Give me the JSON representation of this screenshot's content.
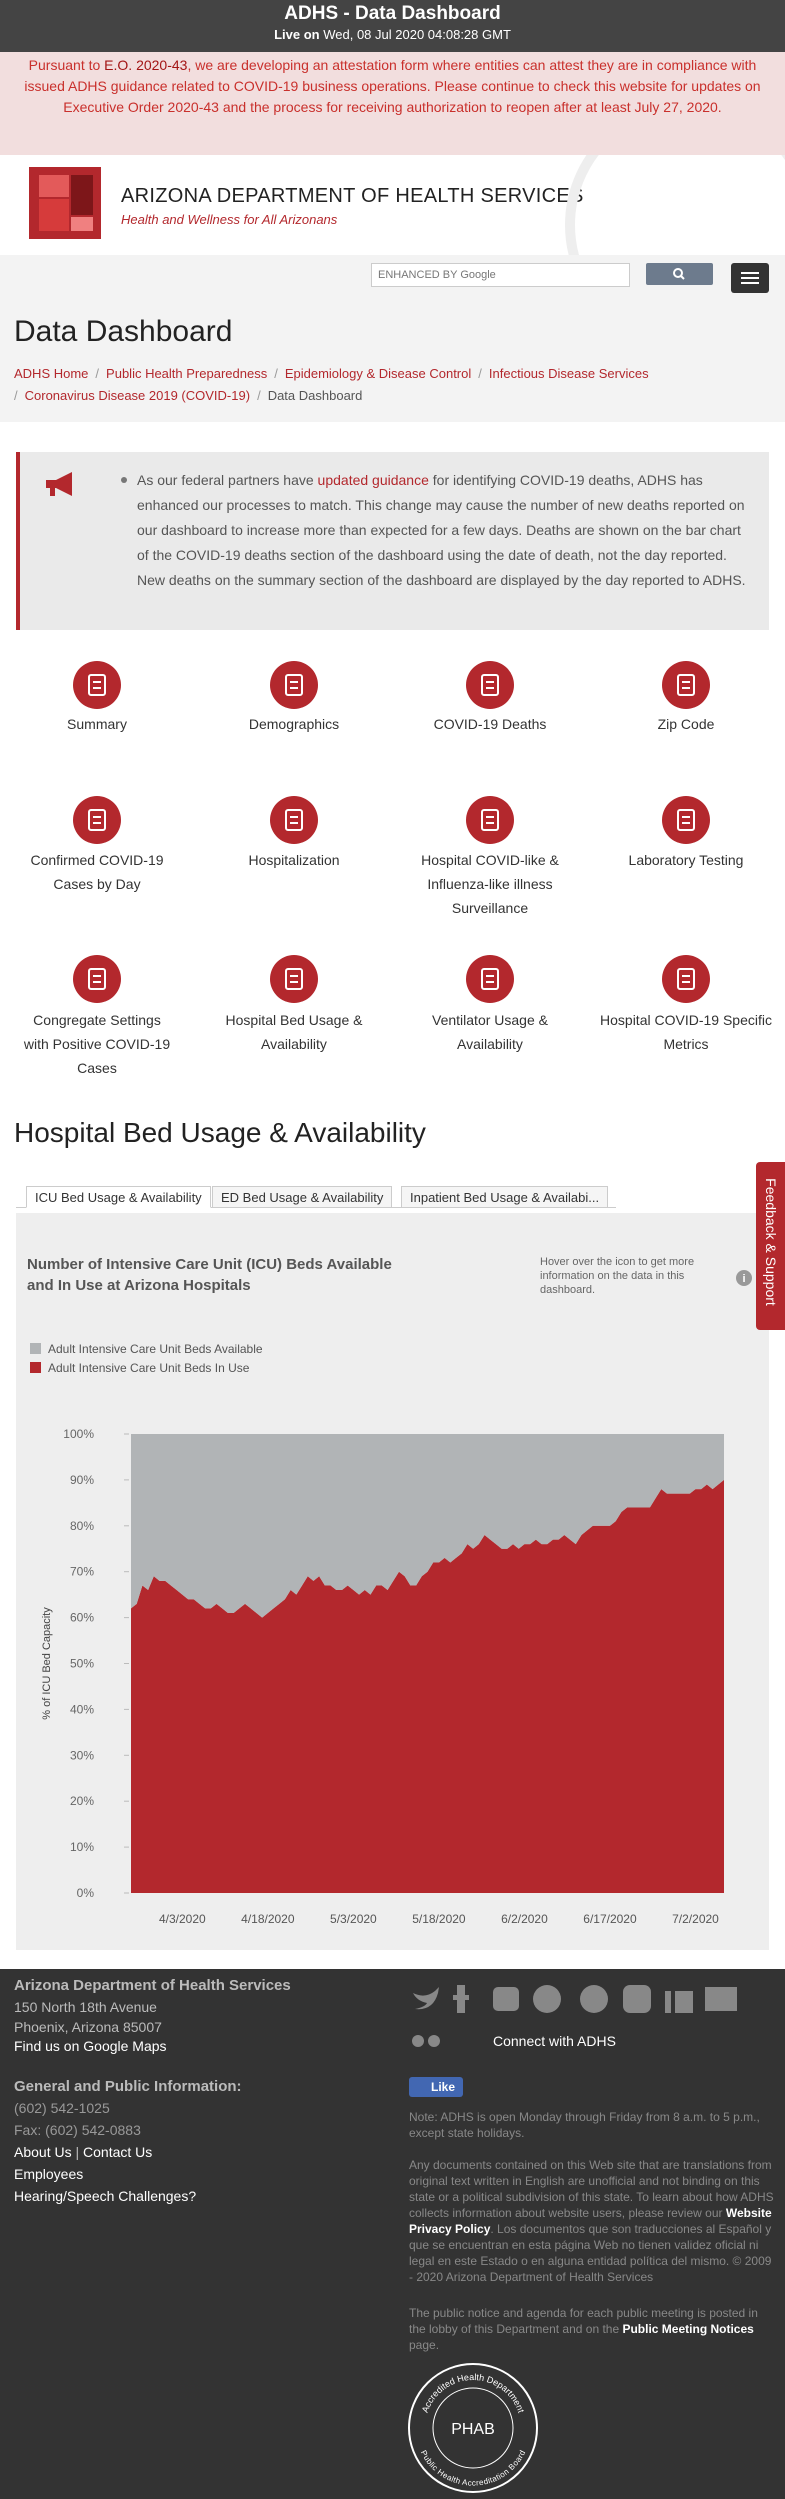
{
  "top_bar": {
    "title": "ADHS - Data Dashboard",
    "live_prefix": "Live on",
    "live_time": "Wed, 08 Jul 2020 04:08:28 GMT"
  },
  "alert": {
    "text_before": "Pursuant to ",
    "link": "E.O. 2020-43",
    "text_after": ", we are developing an attestation form where entities can attest they are in compliance with issued ADHS guidance related to COVID-19 business operations. Please continue to check this website for updates on Executive Order 2020-43 and the process for receiving authorization to reopen after at least July 27, 2020."
  },
  "header": {
    "org": "ARIZONA DEPARTMENT OF HEALTH SERVICES",
    "tagline": "Health and Wellness for All Arizonans",
    "search_placeholder": "ENHANCED BY Google"
  },
  "page_title": "Data Dashboard",
  "breadcrumbs": [
    "ADHS Home",
    "Public Health Preparedness",
    "Epidemiology & Disease Control",
    "Infectious Disease Services",
    "Coronavirus Disease 2019 (COVID-19)",
    "Data Dashboard"
  ],
  "notice": {
    "text_before": "As our federal partners have ",
    "link": "updated guidance",
    "text_after": " for identifying COVID-19 deaths, ADHS has enhanced our processes to match. This change may cause the number of new deaths reported on our dashboard to increase more than expected for a few days. Deaths are shown on the bar chart of the COVID-19 deaths section of the dashboard using the date of death, not the day reported. New deaths on the summary section of the dashboard are displayed by the day reported to ADHS."
  },
  "nav": [
    "Summary",
    "Demographics",
    "COVID-19 Deaths",
    "Zip Code",
    "Confirmed COVID-19 Cases by Day",
    "Hospitalization",
    "Hospital COVID-like & Influenza-like illness Surveillance",
    "Laboratory Testing",
    "Congregate Settings with Positive COVID-19 Cases",
    "Hospital Bed Usage & Availability",
    "Ventilator Usage & Availability",
    "Hospital COVID-19 Specific Metrics"
  ],
  "section_title": "Hospital Bed Usage & Availability",
  "tabs": [
    "ICU Bed Usage & Availability",
    "ED Bed Usage & Availability",
    "Inpatient Bed Usage & Availabi..."
  ],
  "feedback": "Feedback & Support",
  "chart_data": {
    "type": "area",
    "stacked": true,
    "title": "Number of Intensive Care Unit (ICU) Beds Available and In Use at Arizona Hospitals",
    "annotation": "Hover over the icon to get more information on the data in this dashboard.",
    "y_label": "% of ICU Bed Capacity",
    "x": [
      "3/25/2020",
      "3/26/2020",
      "3/27/2020",
      "3/28/2020",
      "3/29/2020",
      "3/30/2020",
      "3/31/2020",
      "4/1/2020",
      "4/2/2020",
      "4/3/2020",
      "4/4/2020",
      "4/5/2020",
      "4/6/2020",
      "4/7/2020",
      "4/8/2020",
      "4/9/2020",
      "4/10/2020",
      "4/11/2020",
      "4/12/2020",
      "4/13/2020",
      "4/14/2020",
      "4/15/2020",
      "4/16/2020",
      "4/17/2020",
      "4/18/2020",
      "4/19/2020",
      "4/20/2020",
      "4/21/2020",
      "4/22/2020",
      "4/23/2020",
      "4/24/2020",
      "4/25/2020",
      "4/26/2020",
      "4/27/2020",
      "4/28/2020",
      "4/29/2020",
      "4/30/2020",
      "5/1/2020",
      "5/2/2020",
      "5/3/2020",
      "5/4/2020",
      "5/5/2020",
      "5/6/2020",
      "5/7/2020",
      "5/8/2020",
      "5/9/2020",
      "5/10/2020",
      "5/11/2020",
      "5/12/2020",
      "5/13/2020",
      "5/14/2020",
      "5/15/2020",
      "5/16/2020",
      "5/17/2020",
      "5/18/2020",
      "5/19/2020",
      "5/20/2020",
      "5/21/2020",
      "5/22/2020",
      "5/23/2020",
      "5/24/2020",
      "5/25/2020",
      "5/26/2020",
      "5/27/2020",
      "5/28/2020",
      "5/29/2020",
      "5/30/2020",
      "5/31/2020",
      "6/1/2020",
      "6/2/2020",
      "6/3/2020",
      "6/4/2020",
      "6/5/2020",
      "6/6/2020",
      "6/7/2020",
      "6/8/2020",
      "6/9/2020",
      "6/10/2020",
      "6/11/2020",
      "6/12/2020",
      "6/13/2020",
      "6/14/2020",
      "6/15/2020",
      "6/16/2020",
      "6/17/2020",
      "6/18/2020",
      "6/19/2020",
      "6/20/2020",
      "6/21/2020",
      "6/22/2020",
      "6/23/2020",
      "6/24/2020",
      "6/25/2020",
      "6/26/2020",
      "6/27/2020",
      "6/28/2020",
      "6/29/2020",
      "6/30/2020",
      "7/1/2020",
      "7/2/2020",
      "7/3/2020",
      "7/4/2020",
      "7/5/2020",
      "7/6/2020",
      "7/7/2020"
    ],
    "series": [
      {
        "name": "Adult Intensive Care Unit Beds Available",
        "color": "#b1b4b6",
        "values": [
          38,
          37,
          33,
          34,
          31,
          32,
          32,
          33,
          34,
          35,
          36,
          36,
          37,
          38,
          38,
          37,
          38,
          39,
          39,
          38,
          37,
          38,
          39,
          40,
          39,
          38,
          37,
          36,
          34,
          35,
          33,
          31,
          32,
          31,
          33,
          33,
          34,
          34,
          33,
          34,
          35,
          34,
          35,
          33,
          33,
          34,
          32,
          30,
          31,
          33,
          33,
          31,
          30,
          28,
          28,
          27,
          28,
          27,
          26,
          24,
          25,
          24,
          22,
          23,
          24,
          25,
          25,
          24,
          25,
          24,
          24,
          23,
          24,
          24,
          23,
          23,
          22,
          23,
          24,
          22,
          21,
          20,
          20,
          20,
          20,
          19,
          17,
          16,
          16,
          16,
          16,
          16,
          14,
          12,
          13,
          13,
          13,
          13,
          13,
          12,
          12,
          11,
          12,
          11,
          10
        ]
      },
      {
        "name": "Adult Intensive Care Unit Beds In Use",
        "color": "#b3282d",
        "values": [
          62,
          63,
          67,
          66,
          69,
          68,
          68,
          67,
          66,
          65,
          64,
          64,
          63,
          62,
          62,
          63,
          62,
          61,
          61,
          62,
          63,
          62,
          61,
          60,
          61,
          62,
          63,
          64,
          66,
          65,
          67,
          69,
          68,
          69,
          67,
          67,
          66,
          66,
          67,
          66,
          65,
          66,
          65,
          67,
          67,
          66,
          68,
          70,
          69,
          67,
          67,
          69,
          70,
          72,
          72,
          73,
          72,
          73,
          74,
          76,
          75,
          76,
          78,
          77,
          76,
          75,
          75,
          76,
          75,
          76,
          76,
          77,
          76,
          76,
          77,
          77,
          78,
          77,
          76,
          78,
          79,
          80,
          80,
          80,
          80,
          81,
          83,
          84,
          84,
          84,
          84,
          84,
          86,
          88,
          87,
          87,
          87,
          87,
          87,
          88,
          88,
          89,
          88,
          89,
          90
        ]
      }
    ],
    "xticks": [
      "4/3/2020",
      "4/18/2020",
      "5/3/2020",
      "5/18/2020",
      "6/2/2020",
      "6/17/2020",
      "7/2/2020"
    ],
    "ylim": [
      0,
      100
    ],
    "yticks": [
      {
        "value": 0,
        "label": "0%"
      },
      {
        "value": 10,
        "label": "10%"
      },
      {
        "value": 20,
        "label": "20%"
      },
      {
        "value": 30,
        "label": "30%"
      },
      {
        "value": 40,
        "label": "40%"
      },
      {
        "value": 50,
        "label": "50%"
      },
      {
        "value": 60,
        "label": "60%"
      },
      {
        "value": 70,
        "label": "70%"
      },
      {
        "value": 80,
        "label": "80%"
      },
      {
        "value": 90,
        "label": "90%"
      },
      {
        "value": 100,
        "label": "100%"
      }
    ],
    "grid": false
  },
  "footer": {
    "org": "Arizona Department of Health Services",
    "address": [
      "150 North 18th Avenue",
      "Phoenix, Arizona 85007"
    ],
    "maps": "Find us on Google Maps",
    "general": "General and Public Information:",
    "phone": "(602) 542-1025",
    "fax": "Fax: (602) 542-0883",
    "about": "About Us",
    "contact": "Contact Us",
    "employees": "Employees",
    "hearing": "Hearing/Speech Challenges?",
    "connect": "Connect with ADHS",
    "like": "Like",
    "hours_note": "Note: ADHS is open Monday through Friday from 8 a.m. to 5 p.m., except state holidays.",
    "disclaimer_before": "Any documents contained on this Web site that are translations from original text written in English are unofficial and not binding on this state or a political subdivision of this state. To learn about how ADHS collects information about website users, please review our ",
    "privacy": "Website Privacy Policy",
    "disclaimer_after": ". Los documentos que son traducciones al Español y que se encuentran en esta página Web no tienen validez oficial ni legal en este Estado o en alguna entidad política del mismo. © 2009 - 2020 Arizona Department of Health Services",
    "public_before": "The public notice and agenda for each public meeting is posted in the lobby of this Department and on the ",
    "public_link": "Public Meeting Notices",
    "public_after": " page.",
    "seal_top": "Accredited Health Department",
    "seal_bottom": "Public Health Accreditation Board",
    "seal_mark": "PHAB"
  }
}
